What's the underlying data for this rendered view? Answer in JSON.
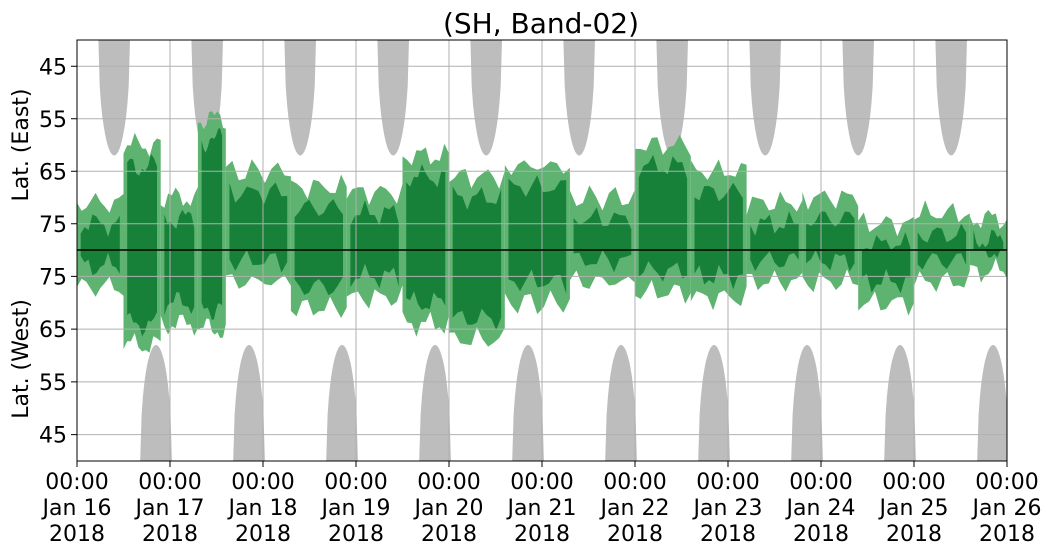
{
  "chart_data": {
    "type": "heatmap",
    "title": "(SH, Band-02)",
    "y_label_east": "Lat. (East)",
    "y_label_west": "Lat. (West)",
    "x_ticks": [
      {
        "time": "00:00",
        "day": "Jan 16",
        "year": "2018"
      },
      {
        "time": "00:00",
        "day": "Jan 17",
        "year": "2018"
      },
      {
        "time": "00:00",
        "day": "Jan 18",
        "year": "2018"
      },
      {
        "time": "00:00",
        "day": "Jan 19",
        "year": "2018"
      },
      {
        "time": "00:00",
        "day": "Jan 20",
        "year": "2018"
      },
      {
        "time": "00:00",
        "day": "Jan 21",
        "year": "2018"
      },
      {
        "time": "00:00",
        "day": "Jan 22",
        "year": "2018"
      },
      {
        "time": "00:00",
        "day": "Jan 23",
        "year": "2018"
      },
      {
        "time": "00:00",
        "day": "Jan 24",
        "year": "2018"
      },
      {
        "time": "00:00",
        "day": "Jan 25",
        "year": "2018"
      },
      {
        "time": "00:00",
        "day": "Jan 26",
        "year": "2018"
      }
    ],
    "x_range": [
      "2018-01-16 00:00",
      "2018-01-26 00:00"
    ],
    "y_ticks_east": [
      "45",
      "55",
      "65",
      "75"
    ],
    "y_ticks_west": [
      "75",
      "65",
      "55",
      "45"
    ],
    "y_tick_values_east": [
      45,
      55,
      65,
      75
    ],
    "y_tick_values_west": [
      75,
      65,
      55,
      45
    ],
    "lat_range": [
      40,
      80
    ],
    "grid": true,
    "colors": {
      "dark_green": "#17813a",
      "light_green": "#5db36f",
      "gray": "#bdbdbd",
      "grid": "#b0b0b0"
    },
    "gray_lobes_east": [
      {
        "center_day": 0.4,
        "half_width_day": 0.17,
        "reach_lat": 62
      },
      {
        "center_day": 1.4,
        "half_width_day": 0.17,
        "reach_lat": 62
      },
      {
        "center_day": 2.4,
        "half_width_day": 0.17,
        "reach_lat": 62
      },
      {
        "center_day": 3.4,
        "half_width_day": 0.17,
        "reach_lat": 62
      },
      {
        "center_day": 4.4,
        "half_width_day": 0.17,
        "reach_lat": 62
      },
      {
        "center_day": 5.4,
        "half_width_day": 0.17,
        "reach_lat": 62
      },
      {
        "center_day": 6.4,
        "half_width_day": 0.17,
        "reach_lat": 62
      },
      {
        "center_day": 7.4,
        "half_width_day": 0.17,
        "reach_lat": 62
      },
      {
        "center_day": 8.4,
        "half_width_day": 0.17,
        "reach_lat": 62
      },
      {
        "center_day": 9.4,
        "half_width_day": 0.17,
        "reach_lat": 62
      }
    ],
    "gray_lobes_west": [
      {
        "center_day": 0.85,
        "half_width_day": 0.17,
        "reach_lat": 62
      },
      {
        "center_day": 1.85,
        "half_width_day": 0.17,
        "reach_lat": 62
      },
      {
        "center_day": 2.85,
        "half_width_day": 0.17,
        "reach_lat": 62
      },
      {
        "center_day": 3.85,
        "half_width_day": 0.17,
        "reach_lat": 62
      },
      {
        "center_day": 4.85,
        "half_width_day": 0.17,
        "reach_lat": 62
      },
      {
        "center_day": 5.85,
        "half_width_day": 0.17,
        "reach_lat": 62
      },
      {
        "center_day": 6.85,
        "half_width_day": 0.17,
        "reach_lat": 62
      },
      {
        "center_day": 7.85,
        "half_width_day": 0.17,
        "reach_lat": 62
      },
      {
        "center_day": 8.85,
        "half_width_day": 0.17,
        "reach_lat": 62
      },
      {
        "center_day": 9.85,
        "half_width_day": 0.17,
        "reach_lat": 62
      }
    ],
    "green_regions": [
      {
        "day_start": 0.0,
        "day_end": 0.5,
        "east_reach_lat": 73,
        "west_reach_lat": 75
      },
      {
        "day_start": 0.5,
        "day_end": 0.9,
        "east_reach_lat": 62,
        "west_reach_lat": 64
      },
      {
        "day_start": 0.9,
        "day_end": 1.3,
        "east_reach_lat": 72,
        "west_reach_lat": 68
      },
      {
        "day_start": 1.3,
        "day_end": 1.6,
        "east_reach_lat": 57,
        "west_reach_lat": 67
      },
      {
        "day_start": 1.6,
        "day_end": 2.3,
        "east_reach_lat": 67,
        "west_reach_lat": 76
      },
      {
        "day_start": 2.3,
        "day_end": 2.9,
        "east_reach_lat": 70,
        "west_reach_lat": 71
      },
      {
        "day_start": 2.9,
        "day_end": 3.5,
        "east_reach_lat": 71,
        "west_reach_lat": 73
      },
      {
        "day_start": 3.5,
        "day_end": 4.0,
        "east_reach_lat": 64,
        "west_reach_lat": 68
      },
      {
        "day_start": 4.0,
        "day_end": 4.6,
        "east_reach_lat": 68,
        "west_reach_lat": 65
      },
      {
        "day_start": 4.6,
        "day_end": 5.3,
        "east_reach_lat": 66,
        "west_reach_lat": 72
      },
      {
        "day_start": 5.3,
        "day_end": 6.0,
        "east_reach_lat": 72,
        "west_reach_lat": 76
      },
      {
        "day_start": 6.0,
        "day_end": 6.6,
        "east_reach_lat": 62,
        "west_reach_lat": 74
      },
      {
        "day_start": 6.6,
        "day_end": 7.2,
        "east_reach_lat": 67,
        "west_reach_lat": 73
      },
      {
        "day_start": 7.2,
        "day_end": 7.8,
        "east_reach_lat": 73,
        "west_reach_lat": 76
      },
      {
        "day_start": 7.8,
        "day_end": 8.4,
        "east_reach_lat": 72,
        "west_reach_lat": 76
      },
      {
        "day_start": 8.4,
        "day_end": 9.0,
        "east_reach_lat": 77,
        "west_reach_lat": 72
      },
      {
        "day_start": 9.0,
        "day_end": 9.6,
        "east_reach_lat": 75,
        "west_reach_lat": 76
      },
      {
        "day_start": 9.6,
        "day_end": 10.0,
        "east_reach_lat": 76,
        "west_reach_lat": 78
      }
    ]
  }
}
